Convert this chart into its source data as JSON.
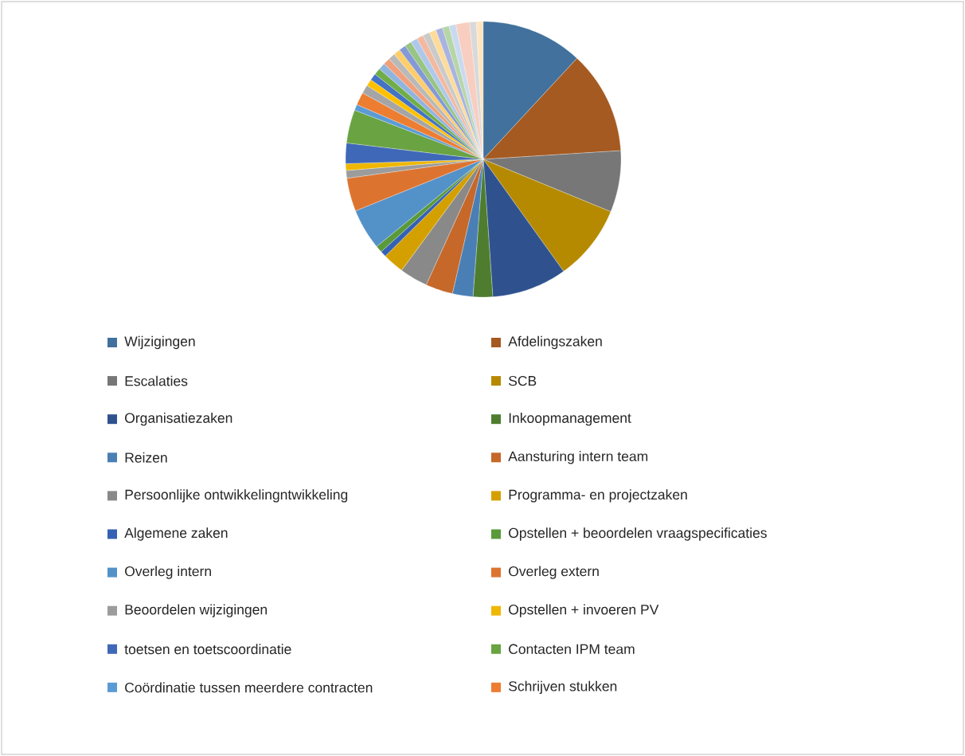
{
  "chart_data": {
    "type": "pie",
    "categories": [
      "Wijzigingen",
      "Afdelingszaken",
      "Escalaties",
      "SCB",
      "Organisatiezaken",
      "Inkoopmanagement",
      "Reizen",
      "Aansturing intern team",
      "Persoonlijke ontwikkelingntwikkeling",
      "Programma- en projectzaken",
      "Algemene zaken",
      "Opstellen + beoordelen vraagspecificaties",
      "Overleg intern",
      "Overleg extern",
      "Beoordelen wijzigingen",
      "Opstellen + invoeren PV",
      "toetsen en toetscoordinatie",
      "Contacten IPM team",
      "Coördinatie tussen meerdere contracten",
      "Schrijven stukken",
      null,
      null,
      null,
      null,
      null,
      null,
      null,
      null,
      null,
      null,
      null,
      null,
      null,
      null,
      null,
      null,
      null,
      null,
      null,
      null
    ],
    "values": [
      11.9,
      12.1,
      7.2,
      8.9,
      8.8,
      2.3,
      2.4,
      3.2,
      3.3,
      2.5,
      0.7,
      0.8,
      4.8,
      3.9,
      0.9,
      0.8,
      2.4,
      3.9,
      0.7,
      1.5,
      1.0,
      0.8,
      0.8,
      0.8,
      0.8,
      0.8,
      0.8,
      0.8,
      0.8,
      0.8,
      0.8,
      0.8,
      0.8,
      0.8,
      0.8,
      0.8,
      0.8,
      1.6,
      0.8,
      0.8
    ],
    "colors": [
      "#41719c",
      "#a55a21",
      "#777777",
      "#b58a00",
      "#2f528f",
      "#4e7d30",
      "#4a7fb5",
      "#c5682a",
      "#898989",
      "#d4a000",
      "#3561b5",
      "#5a9a3a",
      "#5391c9",
      "#dc7430",
      "#9c9c9c",
      "#efb700",
      "#4068b8",
      "#69a342",
      "#5b9bd5",
      "#ed7d31",
      "#a5a5a5",
      "#ffc000",
      "#4472c4",
      "#70ad47",
      "#8fb4e0",
      "#f0a07a",
      "#b9b9b9",
      "#ffcd6a",
      "#8499d6",
      "#98c484",
      "#adc8ea",
      "#f3b9a0",
      "#cacaca",
      "#ffdb99",
      "#a8b3df",
      "#b7d6a8",
      "#c9daf0",
      "#f8cec0",
      "#d9d9d9",
      "#ffe5c0"
    ],
    "legend": "bottom"
  }
}
